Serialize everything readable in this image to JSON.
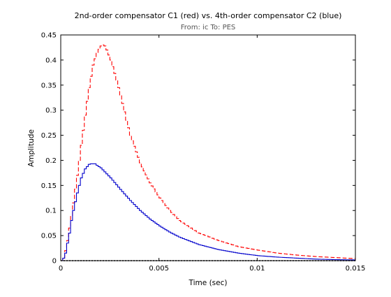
{
  "chart_data": {
    "type": "line",
    "title": "2nd-order compensator C1 (red) vs. 4th-order compensator C2 (blue)",
    "subtitle": "From: ic  To: PES",
    "xlabel": "Time (sec)",
    "ylabel": "Amplitude",
    "xlim": [
      0,
      0.015
    ],
    "ylim": [
      0,
      0.45
    ],
    "x_ticks": [
      0,
      0.005,
      0.01,
      0.015
    ],
    "x_tick_labels": [
      "0",
      "0.005",
      "0.01",
      "0.015"
    ],
    "y_ticks": [
      0,
      0.05,
      0.1,
      0.15,
      0.2,
      0.25,
      0.3,
      0.35,
      0.4,
      0.45
    ],
    "y_tick_labels": [
      "0",
      "0.05",
      "0.1",
      "0.15",
      "0.2",
      "0.25",
      "0.3",
      "0.35",
      "0.4",
      "0.45"
    ],
    "grid": false,
    "legend": "none",
    "series": [
      {
        "color": "#ff0000",
        "line_style": "dashed",
        "step": true,
        "x": [
          0,
          0.0001,
          0.0002,
          0.0003,
          0.0004,
          0.0005,
          0.0006,
          0.0008,
          0.001,
          0.0012,
          0.0014,
          0.0016,
          0.0018,
          0.002,
          0.0021,
          0.0022,
          0.0023,
          0.0025,
          0.0028,
          0.003,
          0.0033,
          0.0035,
          0.004,
          0.0045,
          0.005,
          0.0055,
          0.006,
          0.007,
          0.008,
          0.009,
          0.01,
          0.011,
          0.012,
          0.013,
          0.014,
          0.015
        ],
        "y": [
          0,
          0.005,
          0.02,
          0.04,
          0.065,
          0.09,
          0.115,
          0.17,
          0.23,
          0.29,
          0.345,
          0.39,
          0.415,
          0.428,
          0.43,
          0.428,
          0.42,
          0.4,
          0.36,
          0.33,
          0.28,
          0.25,
          0.195,
          0.155,
          0.125,
          0.1,
          0.08,
          0.055,
          0.04,
          0.028,
          0.021,
          0.015,
          0.011,
          0.008,
          0.006,
          0.004
        ]
      },
      {
        "color": "#0000cc",
        "line_style": "solid",
        "step": true,
        "x": [
          0,
          0.0001,
          0.0002,
          0.0003,
          0.0004,
          0.0005,
          0.0006,
          0.0008,
          0.001,
          0.0012,
          0.0014,
          0.0015,
          0.0016,
          0.0017,
          0.0018,
          0.002,
          0.0022,
          0.0025,
          0.003,
          0.0035,
          0.004,
          0.0045,
          0.005,
          0.0055,
          0.006,
          0.007,
          0.008,
          0.009,
          0.01,
          0.011,
          0.012,
          0.013,
          0.014,
          0.015
        ],
        "y": [
          0,
          0.005,
          0.015,
          0.035,
          0.055,
          0.08,
          0.1,
          0.135,
          0.165,
          0.183,
          0.192,
          0.193,
          0.193,
          0.193,
          0.19,
          0.185,
          0.177,
          0.165,
          0.142,
          0.12,
          0.1,
          0.083,
          0.069,
          0.057,
          0.047,
          0.032,
          0.022,
          0.015,
          0.01,
          0.007,
          0.005,
          0.003,
          0.002,
          0.0015
        ]
      },
      {
        "color": "#000000",
        "line_style": "dotted",
        "step": false,
        "x": [
          0,
          0.015
        ],
        "y": [
          0,
          0
        ]
      }
    ]
  }
}
